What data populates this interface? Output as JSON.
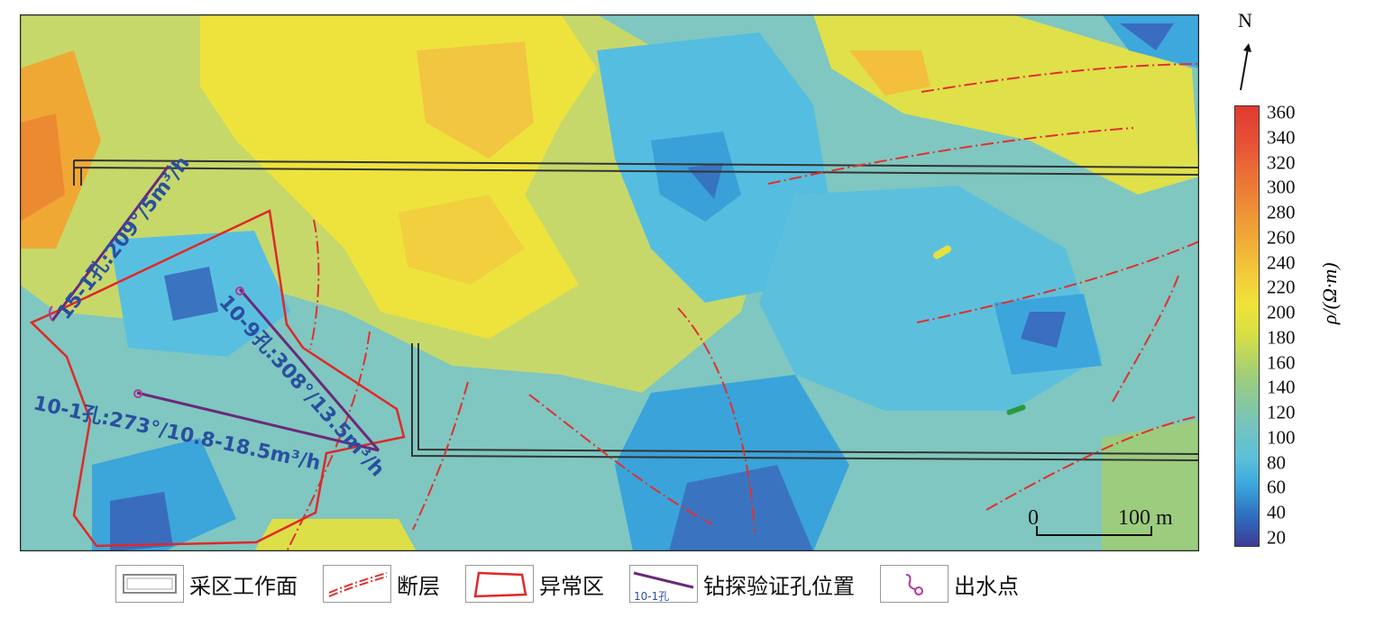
{
  "map": {
    "holes": [
      {
        "label": "15-1孔:209°/5m³/h"
      },
      {
        "label": "10-9孔:308°/13.5m³/h"
      },
      {
        "label": "10-1孔:273°/10.8-18.5m³/h"
      }
    ],
    "scale": {
      "start": "0",
      "end": "100 m"
    },
    "north": "N"
  },
  "colorbar": {
    "title": "ρ/(Ω·m)",
    "ticks": [
      "360",
      "340",
      "320",
      "300",
      "280",
      "260",
      "240",
      "220",
      "200",
      "180",
      "160",
      "140",
      "120",
      "100",
      "80",
      "60",
      "40",
      "20"
    ]
  },
  "legend": [
    {
      "icon": "work-face-icon",
      "label": "采区工作面"
    },
    {
      "icon": "fault-icon",
      "label": "断层"
    },
    {
      "icon": "anomaly-area-icon",
      "label": "异常区"
    },
    {
      "icon": "borehole-icon",
      "label": "钻探验证孔位置",
      "sample": "10-1孔"
    },
    {
      "icon": "water-point-icon",
      "label": "出水点"
    }
  ],
  "colors": {
    "fault": "#e03030",
    "anomaly": "#e02828",
    "borehole": "#6a2a7a",
    "water": "#b03a9a",
    "work_face": "#333333"
  }
}
